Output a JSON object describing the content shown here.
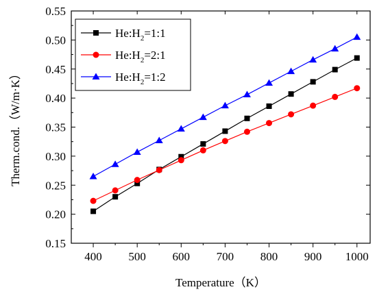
{
  "chart_data": {
    "type": "line",
    "title": "",
    "xlabel": "Temperature（K）",
    "ylabel": "Therm.cond.（W/m·K）",
    "xlim": [
      350,
      1030
    ],
    "ylim": [
      0.15,
      0.55
    ],
    "xticks": [
      "400",
      "500",
      "600",
      "700",
      "800",
      "900",
      "1000"
    ],
    "yticks": [
      "0.15",
      "0.20",
      "0.25",
      "0.30",
      "0.35",
      "0.40",
      "0.45",
      "0.50",
      "0.55"
    ],
    "x": [
      400,
      450,
      500,
      550,
      600,
      650,
      700,
      750,
      800,
      850,
      900,
      950,
      1000
    ],
    "series": [
      {
        "name": "He:H2=1:1",
        "legend_main": "He:H",
        "legend_sub": "2",
        "legend_tail": "=1:1",
        "color": "#000000",
        "marker": "square",
        "values": [
          0.205,
          0.23,
          0.253,
          0.277,
          0.299,
          0.321,
          0.343,
          0.365,
          0.386,
          0.407,
          0.428,
          0.449,
          0.469
        ]
      },
      {
        "name": "He:H2=2:1",
        "legend_main": "He:H",
        "legend_sub": "2",
        "legend_tail": "=2:1",
        "color": "#ff0000",
        "marker": "circle",
        "values": [
          0.223,
          0.241,
          0.259,
          0.276,
          0.293,
          0.31,
          0.326,
          0.342,
          0.357,
          0.372,
          0.387,
          0.402,
          0.417
        ]
      },
      {
        "name": "He:H2=1:2",
        "legend_main": "He:H",
        "legend_sub": "2",
        "legend_tail": "=1:2",
        "color": "#0000ff",
        "marker": "triangle",
        "values": [
          0.265,
          0.286,
          0.307,
          0.327,
          0.347,
          0.367,
          0.387,
          0.406,
          0.426,
          0.446,
          0.466,
          0.485,
          0.505
        ]
      }
    ],
    "legend_position": "top-left",
    "grid": false
  }
}
